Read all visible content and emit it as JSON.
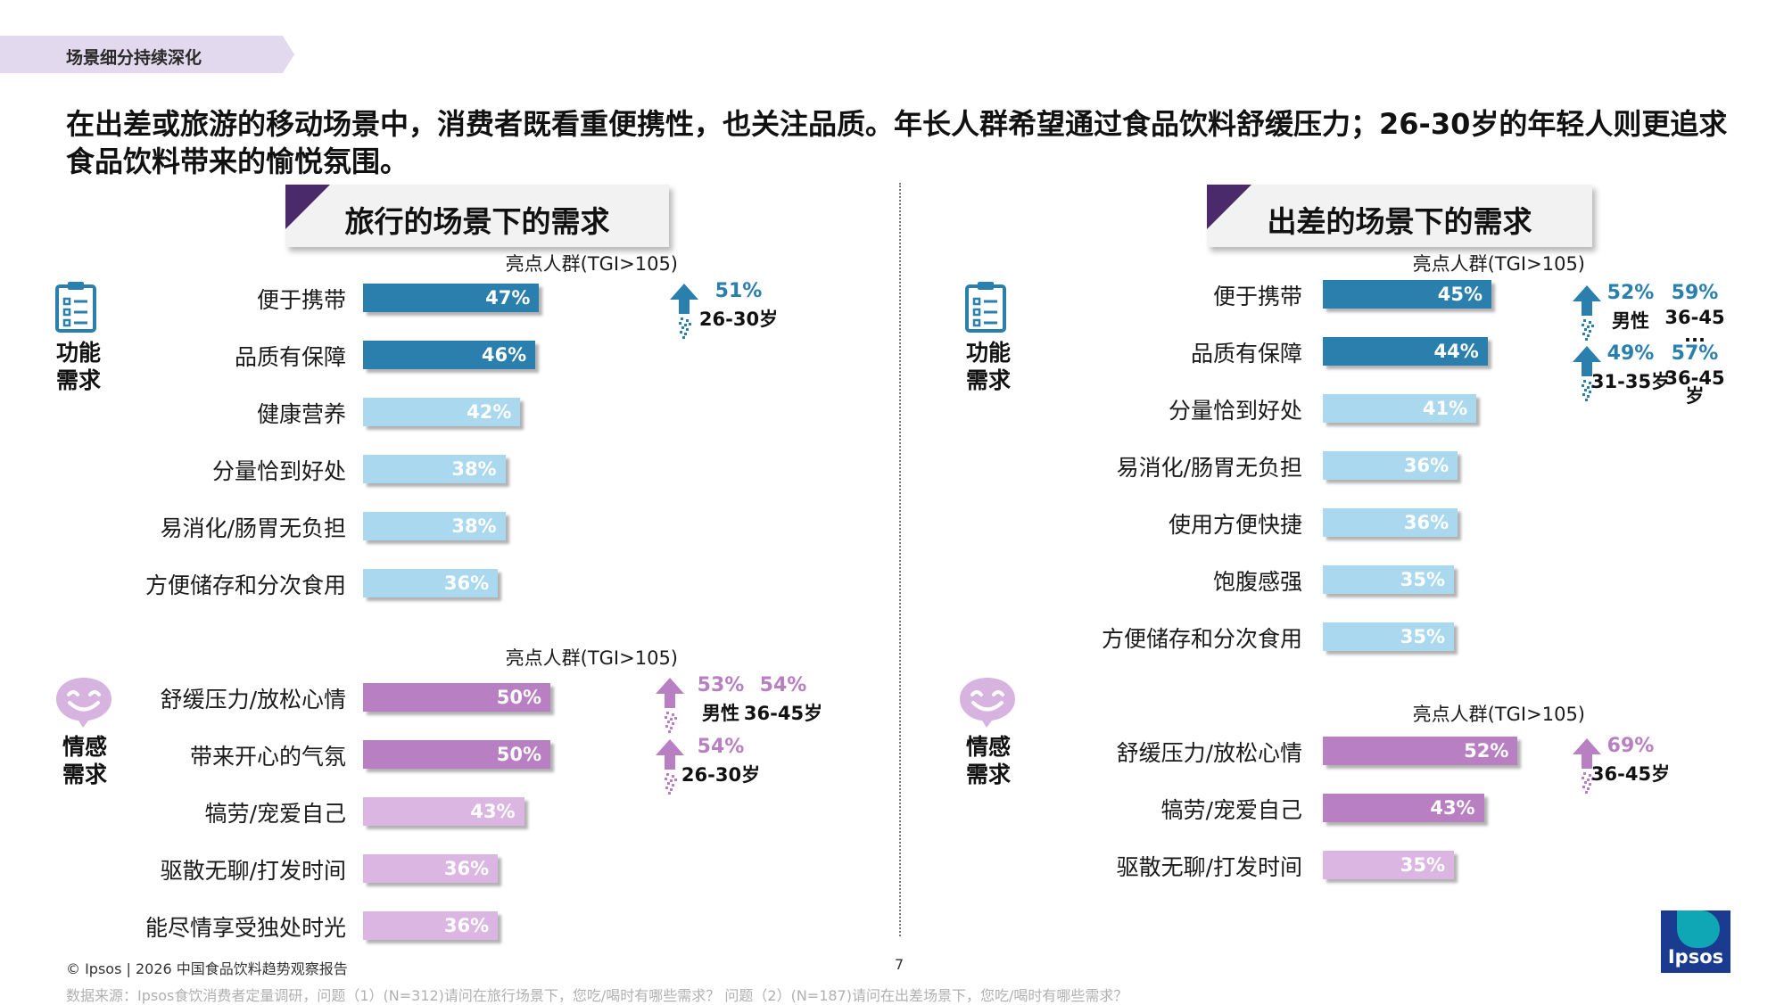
{
  "section_tag": "场景细分持续深化",
  "headline": "在出差或旅游的移动场景中，消费者既看重便携性，也关注品质。年长人群希望通过食品饮料舒缓压力；26-30岁的年轻人则更追求食品饮料带来的愉悦氛围。",
  "colors": {
    "func_top": "#2a7fad",
    "func_light": "#a9d8ef",
    "emo_top": "#b87fc3",
    "emo_light": "#dcb6e2",
    "hl_blue": "#2a7fad",
    "hl_purple": "#b87fc3",
    "accent_dark": "#4b2a6b"
  },
  "icons": {
    "function": "clipboard-checklist-icon",
    "emotion": "smiley-speech-bubble-icon",
    "highlight": "arrow-up-icon"
  },
  "chart_data": [
    {
      "type": "bar",
      "title": "旅行的场景下的需求",
      "highlight_header": "亮点人群(TGI>105)",
      "groups": [
        {
          "name": "功能需求",
          "name_lines": [
            "功能",
            "需求"
          ],
          "categories": [
            "便于携带",
            "品质有保障",
            "健康营养",
            "分量恰到好处",
            "易消化/肠胃无负担",
            "方便储存和分次食用"
          ],
          "values": [
            47,
            46,
            42,
            38,
            38,
            36
          ],
          "value_labels": [
            "47%",
            "46%",
            "42%",
            "38%",
            "38%",
            "36%"
          ],
          "highlights": [
            {
              "items": [
                {
                  "pct": "51%",
                  "group": "26-30岁"
                }
              ]
            }
          ]
        },
        {
          "name": "情感需求",
          "name_lines": [
            "情感",
            "需求"
          ],
          "categories": [
            "舒缓压力/放松心情",
            "带来开心的气氛",
            "犒劳/宠爱自己",
            "驱散无聊/打发时间",
            "能尽情享受独处时光"
          ],
          "values": [
            50,
            50,
            43,
            36,
            36
          ],
          "value_labels": [
            "50%",
            "50%",
            "43%",
            "36%",
            "36%"
          ],
          "highlights": [
            {
              "items": [
                {
                  "pct": "53%",
                  "group": "男性"
                },
                {
                  "pct": "54%",
                  "group": "36-45岁"
                }
              ]
            },
            {
              "items": [
                {
                  "pct": "54%",
                  "group": "26-30岁"
                }
              ]
            }
          ]
        }
      ]
    },
    {
      "type": "bar",
      "title": "出差的场景下的需求",
      "highlight_header": "亮点人群(TGI>105)",
      "groups": [
        {
          "name": "功能需求",
          "name_lines": [
            "功能",
            "需求"
          ],
          "categories": [
            "便于携带",
            "品质有保障",
            "分量恰到好处",
            "易消化/肠胃无负担",
            "使用方便快捷",
            "饱腹感强",
            "方便储存和分次食用"
          ],
          "values": [
            45,
            44,
            41,
            36,
            36,
            35,
            35
          ],
          "value_labels": [
            "45%",
            "44%",
            "41%",
            "36%",
            "36%",
            "35%",
            "35%"
          ],
          "highlights": [
            {
              "items": [
                {
                  "pct": "52%",
                  "group": "男性"
                },
                {
                  "pct": "59%",
                  "group": "36-45",
                  "extra": "..."
                }
              ]
            },
            {
              "items": [
                {
                  "pct": "49%",
                  "group": "31-35岁"
                },
                {
                  "pct": "57%",
                  "group": "36-45",
                  "extra": "岁"
                }
              ]
            }
          ]
        },
        {
          "name": "情感需求",
          "name_lines": [
            "情感",
            "需求"
          ],
          "categories": [
            "舒缓压力/放松心情",
            "犒劳/宠爱自己",
            "驱散无聊/打发时间"
          ],
          "values": [
            52,
            43,
            35
          ],
          "value_labels": [
            "52%",
            "43%",
            "35%"
          ],
          "highlights": [
            {
              "items": [
                {
                  "pct": "69%",
                  "group": "36-45岁"
                }
              ]
            }
          ]
        }
      ]
    }
  ],
  "footer": "© Ipsos | 2026 中国食品饮料趋势观察报告",
  "page_number": "7",
  "source": "数据来源：Ipsos食饮消费者定量调研，问题（1）(N=312)请问在旅行场景下，您吃/喝时有哪些需求？ 问题（2）(N=187)请问在出差场景下，您吃/喝时有哪些需求？",
  "logo_text": "Ipsos"
}
